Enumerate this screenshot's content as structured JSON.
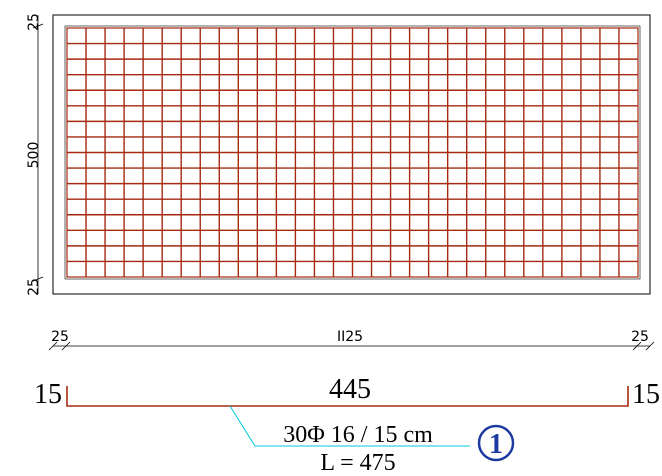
{
  "plan": {
    "dim_left_top": "25",
    "dim_left_middle": "500",
    "dim_left_bottom": "25",
    "dim_bottom_left": "25",
    "dim_bottom_middle": "II25",
    "dim_bottom_right": "25",
    "bars_x_count": 30,
    "bars_y_count": 16,
    "rebar_color": "#a52a10"
  },
  "bar_schedule": {
    "left_hook": "15",
    "length": "445",
    "right_hook": "15",
    "spec": "30Φ 16 / 15 cm",
    "total_length": "L = 475",
    "marker": "1",
    "leader_color": "#00c8d8",
    "marker_color": "#1c3aa0"
  }
}
